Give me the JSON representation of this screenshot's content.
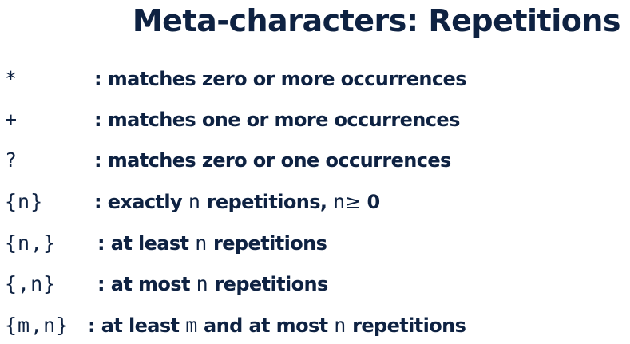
{
  "slide": {
    "title": "Meta-characters: Repetitions",
    "rows": [
      {
        "symbol": "*",
        "text": ": matches zero or more occurrences"
      },
      {
        "symbol": "+",
        "text": ": matches one or more occurrences"
      },
      {
        "symbol": "?",
        "text": ": matches zero or one occurrences"
      },
      {
        "symbol": "{n}",
        "pre": ": exactly ",
        "code1": "n",
        "mid": " repetitions, ",
        "code2": "n",
        "geq": "≥",
        "post": " 0"
      },
      {
        "symbol": "{n,}",
        "pre": ": at least ",
        "code1": "n",
        "post": " repetitions"
      },
      {
        "symbol": "{,n}",
        "pre": ": at most ",
        "code1": "n",
        "post": " repetitions"
      },
      {
        "symbol": "{m,n}",
        "pre": ": at least ",
        "code1": "m",
        "mid": " and at most ",
        "code2": "n",
        "post": " repetitions"
      }
    ]
  },
  "colors": {
    "text": "#0e2242",
    "background": "#ffffff"
  }
}
